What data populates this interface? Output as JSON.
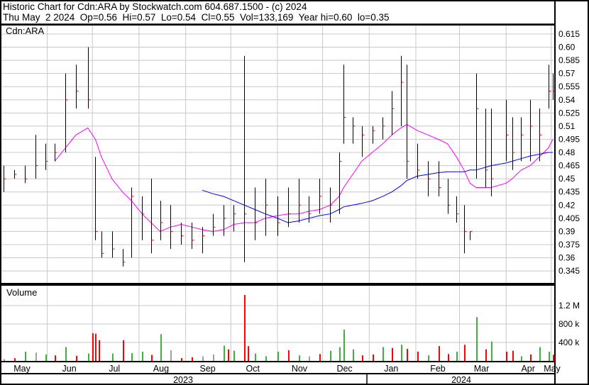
{
  "header": {
    "line1": "Historic Chart for Cdn:ARA by Stockwatch.com 604.687.1500 - (c) 2024",
    "line2": "Thu May  2 2024  Op=0.56  Hi=0.57  Lo=0.54  Cl=0.55  Vol=133,169  Year hi=0.60  lo=0.35"
  },
  "colors": {
    "bar": "#000000",
    "close_tick": "#ff0000",
    "ma_short": "#ff00ff",
    "ma_long": "#0000ff",
    "vol_up": "#3cb43c",
    "vol_down": "#ff0000",
    "vol_flat": "#a0a0a0",
    "grid": "#c8c8c8"
  },
  "chart_data": [
    {
      "type": "ohlc",
      "title": "Cdn:ARA",
      "ylim": [
        0.33,
        0.625
      ],
      "y_ticks": [
        "0.615",
        "0.60",
        "0.585",
        "0.57",
        "0.555",
        "0.54",
        "0.525",
        "0.51",
        "0.495",
        "0.48",
        "0.465",
        "0.45",
        "0.435",
        "0.42",
        "0.405",
        "0.39",
        "0.375",
        "0.36",
        "0.345"
      ],
      "x_ticks": [
        "May",
        "Jun",
        "Jul",
        "Aug",
        "Sep",
        "Oct",
        "Nov",
        "Dec",
        "Jan",
        "Feb",
        "Mar",
        "Apr",
        "May"
      ],
      "years": [
        "2023",
        "2024"
      ],
      "bars": [
        {
          "d": "2023-05-03",
          "h": 0.465,
          "l": 0.435,
          "c": 0.45,
          "m1": null,
          "m2": null
        },
        {
          "d": "2023-05-10",
          "h": 0.46,
          "l": 0.45,
          "c": 0.455,
          "m1": null,
          "m2": null
        },
        {
          "d": "2023-05-17",
          "h": 0.465,
          "l": 0.445,
          "c": 0.45,
          "m1": null,
          "m2": null
        },
        {
          "d": "2023-05-24",
          "h": 0.5,
          "l": 0.45,
          "c": 0.465,
          "m1": null,
          "m2": null
        },
        {
          "d": "2023-05-31",
          "h": 0.49,
          "l": 0.46,
          "c": 0.47,
          "m1": null,
          "m2": null
        },
        {
          "d": "2023-06-06",
          "h": 0.49,
          "l": 0.47,
          "c": 0.48,
          "m1": 0.47,
          "m2": null
        },
        {
          "d": "2023-06-13",
          "h": 0.57,
          "l": 0.48,
          "c": 0.54,
          "m1": 0.485,
          "m2": null
        },
        {
          "d": "2023-06-20",
          "h": 0.58,
          "l": 0.53,
          "c": 0.55,
          "m1": 0.5,
          "m2": null
        },
        {
          "d": "2023-06-28",
          "h": 0.6,
          "l": 0.53,
          "c": 0.54,
          "m1": 0.508,
          "m2": null
        },
        {
          "d": "2023-07-03",
          "h": 0.475,
          "l": 0.38,
          "c": 0.39,
          "m1": 0.495,
          "m2": null
        },
        {
          "d": "2023-07-07",
          "h": 0.39,
          "l": 0.36,
          "c": 0.365,
          "m1": 0.475,
          "m2": null
        },
        {
          "d": "2023-07-14",
          "h": 0.39,
          "l": 0.36,
          "c": 0.37,
          "m1": 0.45,
          "m2": null
        },
        {
          "d": "2023-07-21",
          "h": 0.37,
          "l": 0.35,
          "c": 0.355,
          "m1": 0.435,
          "m2": null
        },
        {
          "d": "2023-07-27",
          "h": 0.44,
          "l": 0.36,
          "c": 0.43,
          "m1": 0.425,
          "m2": null
        },
        {
          "d": "2023-08-03",
          "h": 0.43,
          "l": 0.38,
          "c": 0.41,
          "m1": 0.41,
          "m2": null
        },
        {
          "d": "2023-08-09",
          "h": 0.45,
          "l": 0.365,
          "c": 0.38,
          "m1": 0.4,
          "m2": null
        },
        {
          "d": "2023-08-15",
          "h": 0.425,
          "l": 0.38,
          "c": 0.4,
          "m1": 0.39,
          "m2": null
        },
        {
          "d": "2023-08-22",
          "h": 0.42,
          "l": 0.37,
          "c": 0.39,
          "m1": 0.395,
          "m2": null
        },
        {
          "d": "2023-08-29",
          "h": 0.4,
          "l": 0.375,
          "c": 0.385,
          "m1": 0.398,
          "m2": null
        },
        {
          "d": "2023-09-05",
          "h": 0.4,
          "l": 0.37,
          "c": 0.38,
          "m1": 0.395,
          "m2": null
        },
        {
          "d": "2023-09-12",
          "h": 0.395,
          "l": 0.365,
          "c": 0.385,
          "m1": 0.392,
          "m2": 0.437
        },
        {
          "d": "2023-09-19",
          "h": 0.41,
          "l": 0.385,
          "c": 0.395,
          "m1": 0.39,
          "m2": 0.433
        },
        {
          "d": "2023-09-26",
          "h": 0.42,
          "l": 0.385,
          "c": 0.405,
          "m1": 0.392,
          "m2": 0.43
        },
        {
          "d": "2023-10-03",
          "h": 0.42,
          "l": 0.39,
          "c": 0.41,
          "m1": 0.398,
          "m2": 0.425
        },
        {
          "d": "2023-10-10",
          "h": 0.59,
          "l": 0.355,
          "c": 0.41,
          "m1": 0.4,
          "m2": 0.42
        },
        {
          "d": "2023-10-17",
          "h": 0.44,
          "l": 0.38,
          "c": 0.4,
          "m1": 0.4,
          "m2": 0.415
        },
        {
          "d": "2023-10-24",
          "h": 0.45,
          "l": 0.385,
          "c": 0.42,
          "m1": 0.405,
          "m2": 0.41
        },
        {
          "d": "2023-11-01",
          "h": 0.43,
          "l": 0.385,
          "c": 0.4,
          "m1": 0.408,
          "m2": 0.405
        },
        {
          "d": "2023-11-08",
          "h": 0.44,
          "l": 0.395,
          "c": 0.41,
          "m1": 0.41,
          "m2": 0.4
        },
        {
          "d": "2023-11-15",
          "h": 0.45,
          "l": 0.4,
          "c": 0.42,
          "m1": 0.41,
          "m2": 0.402
        },
        {
          "d": "2023-11-22",
          "h": 0.43,
          "l": 0.4,
          "c": 0.41,
          "m1": 0.413,
          "m2": 0.405
        },
        {
          "d": "2023-11-29",
          "h": 0.45,
          "l": 0.41,
          "c": 0.43,
          "m1": 0.415,
          "m2": 0.408
        },
        {
          "d": "2023-12-06",
          "h": 0.44,
          "l": 0.4,
          "c": 0.42,
          "m1": 0.42,
          "m2": 0.41
        },
        {
          "d": "2023-12-12",
          "h": 0.48,
          "l": 0.41,
          "c": 0.47,
          "m1": 0.43,
          "m2": 0.415
        },
        {
          "d": "2023-12-15",
          "h": 0.58,
          "l": 0.49,
          "c": 0.52,
          "m1": 0.44,
          "m2": 0.418
        },
        {
          "d": "2023-12-21",
          "h": 0.52,
          "l": 0.49,
          "c": 0.51,
          "m1": 0.455,
          "m2": 0.42
        },
        {
          "d": "2023-12-27",
          "h": 0.51,
          "l": 0.475,
          "c": 0.5,
          "m1": 0.47,
          "m2": 0.422
        },
        {
          "d": "2024-01-03",
          "h": 0.51,
          "l": 0.49,
          "c": 0.505,
          "m1": 0.48,
          "m2": 0.425
        },
        {
          "d": "2024-01-10",
          "h": 0.52,
          "l": 0.495,
          "c": 0.51,
          "m1": 0.49,
          "m2": 0.43
        },
        {
          "d": "2024-01-16",
          "h": 0.55,
          "l": 0.5,
          "c": 0.53,
          "m1": 0.5,
          "m2": 0.435
        },
        {
          "d": "2024-01-22",
          "h": 0.59,
          "l": 0.51,
          "c": 0.56,
          "m1": 0.508,
          "m2": 0.442
        },
        {
          "d": "2024-01-26",
          "h": 0.58,
          "l": 0.45,
          "c": 0.47,
          "m1": 0.512,
          "m2": 0.448
        },
        {
          "d": "2024-02-02",
          "h": 0.49,
          "l": 0.45,
          "c": 0.46,
          "m1": 0.505,
          "m2": 0.453
        },
        {
          "d": "2024-02-09",
          "h": 0.47,
          "l": 0.43,
          "c": 0.45,
          "m1": 0.5,
          "m2": 0.455
        },
        {
          "d": "2024-02-16",
          "h": 0.47,
          "l": 0.43,
          "c": 0.44,
          "m1": 0.495,
          "m2": 0.457
        },
        {
          "d": "2024-02-22",
          "h": 0.45,
          "l": 0.41,
          "c": 0.42,
          "m1": 0.49,
          "m2": 0.458
        },
        {
          "d": "2024-02-28",
          "h": 0.43,
          "l": 0.4,
          "c": 0.41,
          "m1": 0.475,
          "m2": 0.458
        },
        {
          "d": "2024-03-04",
          "h": 0.42,
          "l": 0.365,
          "c": 0.39,
          "m1": 0.46,
          "m2": 0.458
        },
        {
          "d": "2024-03-08",
          "h": 0.39,
          "l": 0.38,
          "c": 0.39,
          "m1": 0.445,
          "m2": 0.46
        },
        {
          "d": "2024-03-12",
          "h": 0.57,
          "l": 0.45,
          "c": 0.53,
          "m1": 0.44,
          "m2": 0.46
        },
        {
          "d": "2024-03-18",
          "h": 0.53,
          "l": 0.44,
          "c": 0.46,
          "m1": 0.44,
          "m2": 0.463
        },
        {
          "d": "2024-03-22",
          "h": 0.53,
          "l": 0.43,
          "c": 0.45,
          "m1": 0.44,
          "m2": 0.465
        },
        {
          "d": "2024-04-01",
          "h": 0.54,
          "l": 0.47,
          "c": 0.5,
          "m1": 0.445,
          "m2": 0.468
        },
        {
          "d": "2024-04-05",
          "h": 0.52,
          "l": 0.46,
          "c": 0.48,
          "m1": 0.45,
          "m2": 0.47
        },
        {
          "d": "2024-04-11",
          "h": 0.52,
          "l": 0.47,
          "c": 0.5,
          "m1": 0.46,
          "m2": 0.473
        },
        {
          "d": "2024-04-17",
          "h": 0.54,
          "l": 0.47,
          "c": 0.51,
          "m1": 0.465,
          "m2": 0.476
        },
        {
          "d": "2024-04-23",
          "h": 0.53,
          "l": 0.47,
          "c": 0.5,
          "m1": 0.475,
          "m2": 0.478
        },
        {
          "d": "2024-04-29",
          "h": 0.58,
          "l": 0.53,
          "c": 0.55,
          "m1": 0.485,
          "m2": 0.48
        },
        {
          "d": "2024-05-02",
          "h": 0.57,
          "l": 0.54,
          "c": 0.55,
          "m1": 0.495,
          "m2": 0.48
        }
      ]
    },
    {
      "type": "bar",
      "title": "Volume",
      "y_ticks": [
        "1.2 M",
        "800 k",
        "400 k"
      ],
      "ylim": [
        0,
        1600000
      ],
      "volume": [
        {
          "d": "2023-05-03",
          "v": 40000,
          "t": "flat"
        },
        {
          "d": "2023-05-10",
          "v": 60000,
          "t": "down"
        },
        {
          "d": "2023-05-17",
          "v": 200000,
          "t": "up"
        },
        {
          "d": "2023-05-24",
          "v": 180000,
          "t": "flat"
        },
        {
          "d": "2023-05-31",
          "v": 140000,
          "t": "up"
        },
        {
          "d": "2023-06-06",
          "v": 120000,
          "t": "down"
        },
        {
          "d": "2023-06-13",
          "v": 300000,
          "t": "up"
        },
        {
          "d": "2023-06-20",
          "v": 110000,
          "t": "down"
        },
        {
          "d": "2023-06-28",
          "v": 160000,
          "t": "up"
        },
        {
          "d": "2023-07-01",
          "v": 600000,
          "t": "down"
        },
        {
          "d": "2023-07-03",
          "v": 590000,
          "t": "down"
        },
        {
          "d": "2023-07-05",
          "v": 450000,
          "t": "down"
        },
        {
          "d": "2023-07-14",
          "v": 160000,
          "t": "up"
        },
        {
          "d": "2023-07-21",
          "v": 450000,
          "t": "down"
        },
        {
          "d": "2023-07-27",
          "v": 170000,
          "t": "up"
        },
        {
          "d": "2023-08-03",
          "v": 200000,
          "t": "up"
        },
        {
          "d": "2023-08-09",
          "v": 130000,
          "t": "down"
        },
        {
          "d": "2023-08-15",
          "v": 580000,
          "t": "up"
        },
        {
          "d": "2023-08-22",
          "v": 230000,
          "t": "flat"
        },
        {
          "d": "2023-08-29",
          "v": 60000,
          "t": "down"
        },
        {
          "d": "2023-09-05",
          "v": 80000,
          "t": "down"
        },
        {
          "d": "2023-09-12",
          "v": 100000,
          "t": "flat"
        },
        {
          "d": "2023-09-19",
          "v": 140000,
          "t": "flat"
        },
        {
          "d": "2023-09-26",
          "v": 330000,
          "t": "up"
        },
        {
          "d": "2023-09-29",
          "v": 250000,
          "t": "down"
        },
        {
          "d": "2023-10-03",
          "v": 220000,
          "t": "up"
        },
        {
          "d": "2023-10-10",
          "v": 1430000,
          "t": "down"
        },
        {
          "d": "2023-10-12",
          "v": 320000,
          "t": "down"
        },
        {
          "d": "2023-10-17",
          "v": 160000,
          "t": "up"
        },
        {
          "d": "2023-10-24",
          "v": 100000,
          "t": "up"
        },
        {
          "d": "2023-11-01",
          "v": 200000,
          "t": "up"
        },
        {
          "d": "2023-11-08",
          "v": 230000,
          "t": "down"
        },
        {
          "d": "2023-11-15",
          "v": 120000,
          "t": "up"
        },
        {
          "d": "2023-11-22",
          "v": 100000,
          "t": "flat"
        },
        {
          "d": "2023-11-29",
          "v": 150000,
          "t": "down"
        },
        {
          "d": "2023-12-06",
          "v": 220000,
          "t": "up"
        },
        {
          "d": "2023-12-12",
          "v": 300000,
          "t": "up"
        },
        {
          "d": "2023-12-15",
          "v": 680000,
          "t": "up"
        },
        {
          "d": "2023-12-21",
          "v": 250000,
          "t": "up"
        },
        {
          "d": "2023-12-27",
          "v": 120000,
          "t": "down"
        },
        {
          "d": "2024-01-03",
          "v": 140000,
          "t": "down"
        },
        {
          "d": "2024-01-10",
          "v": 300000,
          "t": "up"
        },
        {
          "d": "2024-01-16",
          "v": 280000,
          "t": "down"
        },
        {
          "d": "2024-01-22",
          "v": 350000,
          "t": "up"
        },
        {
          "d": "2024-01-26",
          "v": 260000,
          "t": "down"
        },
        {
          "d": "2024-02-02",
          "v": 200000,
          "t": "down"
        },
        {
          "d": "2024-02-09",
          "v": 120000,
          "t": "up"
        },
        {
          "d": "2024-02-16",
          "v": 320000,
          "t": "down"
        },
        {
          "d": "2024-02-22",
          "v": 150000,
          "t": "down"
        },
        {
          "d": "2024-02-28",
          "v": 200000,
          "t": "up"
        },
        {
          "d": "2024-03-04",
          "v": 350000,
          "t": "down"
        },
        {
          "d": "2024-03-12",
          "v": 950000,
          "t": "up"
        },
        {
          "d": "2024-03-18",
          "v": 250000,
          "t": "down"
        },
        {
          "d": "2024-03-22",
          "v": 420000,
          "t": "up"
        },
        {
          "d": "2024-04-01",
          "v": 200000,
          "t": "down"
        },
        {
          "d": "2024-04-05",
          "v": 220000,
          "t": "red"
        },
        {
          "d": "2024-04-11",
          "v": 100000,
          "t": "up"
        },
        {
          "d": "2024-04-17",
          "v": 140000,
          "t": "down"
        },
        {
          "d": "2024-04-23",
          "v": 300000,
          "t": "up"
        },
        {
          "d": "2024-04-29",
          "v": 200000,
          "t": "up"
        },
        {
          "d": "2024-05-02",
          "v": 133169,
          "t": "down"
        }
      ]
    }
  ]
}
